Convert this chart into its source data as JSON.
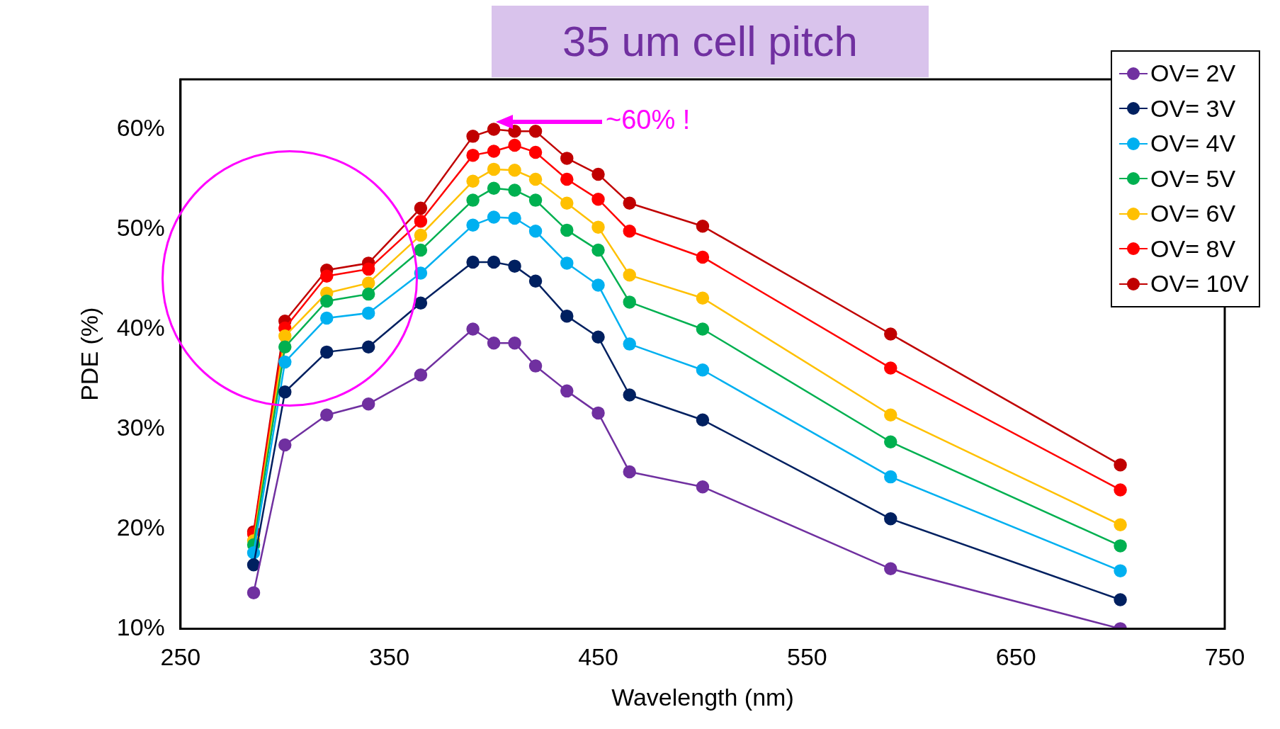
{
  "chart_data": {
    "type": "line",
    "title": "35 um cell pitch",
    "xlabel": "Wavelength (nm)",
    "ylabel": "PDE (%)",
    "annotations": [
      "~60% !"
    ],
    "x": [
      285,
      300,
      320,
      340,
      365,
      390,
      400,
      410,
      420,
      435,
      450,
      465,
      500,
      590,
      700
    ],
    "series": [
      {
        "name": "OV= 2V",
        "color": "#7030a0",
        "values": [
          13.6,
          28.4,
          31.4,
          32.5,
          35.4,
          40.0,
          38.6,
          38.6,
          36.3,
          33.8,
          31.6,
          25.7,
          24.2,
          16.0,
          10.0
        ]
      },
      {
        "name": "OV= 3V",
        "color": "#002060",
        "values": [
          16.4,
          33.7,
          37.7,
          38.2,
          42.6,
          46.7,
          46.7,
          46.3,
          44.8,
          41.3,
          39.2,
          33.4,
          30.9,
          21.0,
          12.9
        ]
      },
      {
        "name": "OV= 4V",
        "color": "#00b0f0",
        "values": [
          17.6,
          36.7,
          41.1,
          41.6,
          45.6,
          50.4,
          51.2,
          51.1,
          49.8,
          46.6,
          44.4,
          38.5,
          35.9,
          25.2,
          15.8
        ]
      },
      {
        "name": "OV= 5V",
        "color": "#00b050",
        "values": [
          18.4,
          38.2,
          42.8,
          43.5,
          47.9,
          52.9,
          54.1,
          53.9,
          52.9,
          49.9,
          47.9,
          42.7,
          40.0,
          28.7,
          18.3
        ]
      },
      {
        "name": "OV= 6V",
        "color": "#ffc000",
        "values": [
          18.8,
          39.3,
          43.6,
          44.6,
          49.4,
          54.8,
          56.0,
          55.9,
          55.0,
          52.6,
          50.2,
          45.4,
          43.1,
          31.4,
          20.4
        ]
      },
      {
        "name": "OV= 8V",
        "color": "#ff0000",
        "values": [
          19.5,
          40.1,
          45.3,
          46.0,
          50.8,
          57.4,
          57.8,
          58.4,
          57.7,
          55.0,
          53.0,
          49.8,
          47.2,
          36.1,
          23.9
        ]
      },
      {
        "name": "OV= 10V",
        "color": "#c00000",
        "values": [
          19.7,
          40.8,
          45.9,
          46.6,
          52.1,
          59.3,
          60.0,
          59.8,
          59.8,
          57.1,
          55.5,
          52.6,
          50.3,
          39.5,
          26.4
        ]
      }
    ],
    "xlim": [
      250,
      750
    ],
    "xticks": [
      250,
      350,
      450,
      550,
      650,
      750
    ],
    "ylim": [
      10,
      65
    ],
    "yticks": [
      {
        "value": 10,
        "label": "10%"
      },
      {
        "value": 20,
        "label": "20%"
      },
      {
        "value": 30,
        "label": "30%"
      },
      {
        "value": 40,
        "label": "40%"
      },
      {
        "value": 50,
        "label": "50%"
      },
      {
        "value": 60,
        "label": "60%"
      }
    ],
    "legend": "top right",
    "marker": "circle",
    "line_style": "solid"
  }
}
